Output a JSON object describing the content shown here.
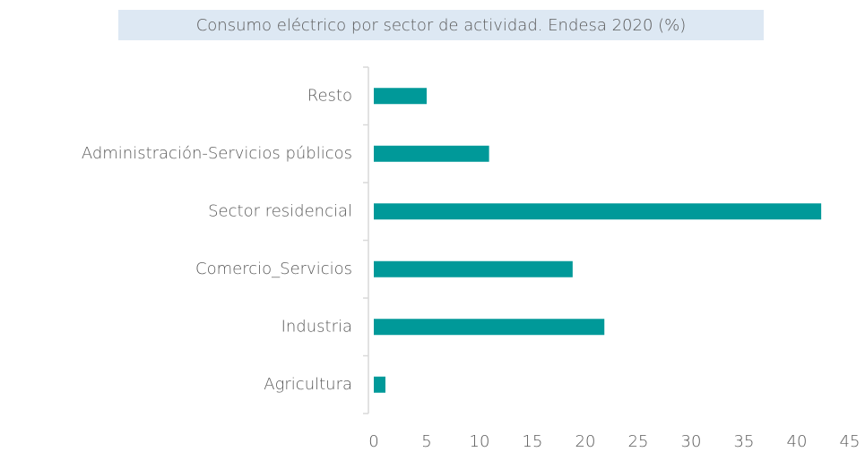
{
  "chart_data": {
    "type": "bar",
    "orientation": "horizontal",
    "title": "Consumo eléctrico por sector de actividad. Endesa 2020 (%)",
    "categories": [
      "Resto",
      "Administración-Servicios públicos",
      "Sector residencial",
      "Comercio_Servicios",
      "Industria",
      "Agricultura"
    ],
    "values": [
      5.0,
      10.9,
      42.3,
      18.8,
      21.8,
      1.1
    ],
    "color": "#009999",
    "xlim": [
      0,
      45
    ],
    "xticks": [
      0,
      5,
      10,
      15,
      20,
      25,
      30,
      35,
      40,
      45
    ],
    "grid": false
  }
}
